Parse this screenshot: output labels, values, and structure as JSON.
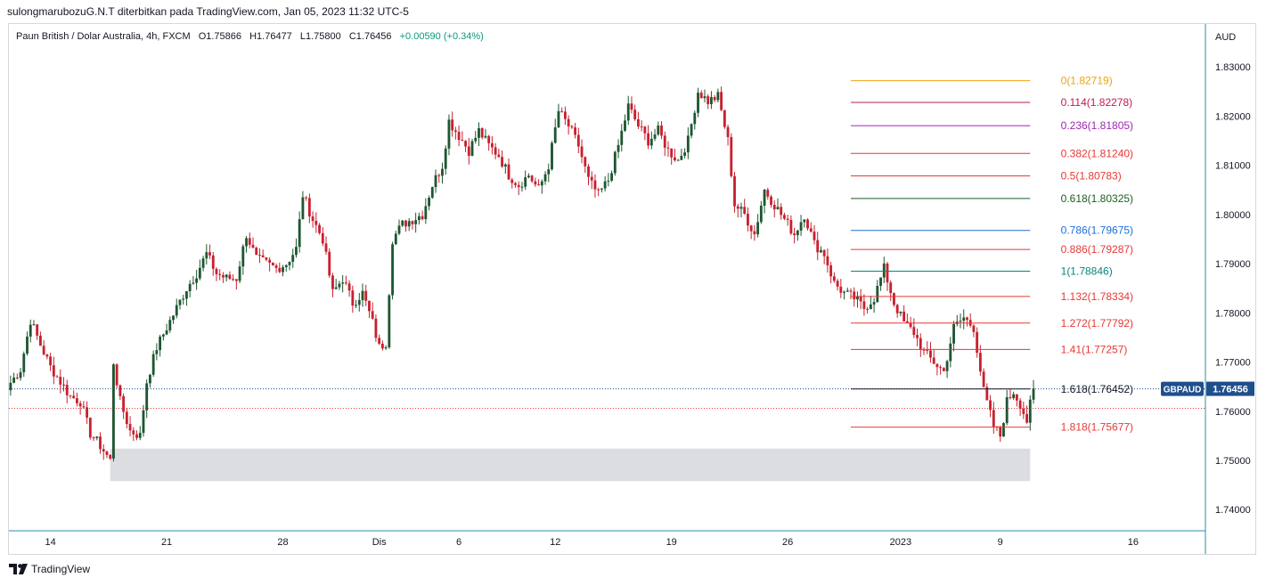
{
  "caption": "sulongmarubozuG.N.T diterbitkan pada TradingView.com, Jan 05, 2023 11:32 UTC-5",
  "symbol": {
    "name": "Paun British / Dolar Australia, 4h, FXCM",
    "open": "O1.75866",
    "high": "H1.76477",
    "low": "L1.75800",
    "close": "C1.76456",
    "change": "+0.00590 (+0.34%)"
  },
  "footer": {
    "brand": "TradingView"
  },
  "chart_data": {
    "type": "candlestick",
    "currency": "AUD",
    "ticker": "GBPAUD",
    "last_price": "1.76456",
    "ylim": [
      1.7357,
      1.8387
    ],
    "y_ticks": [
      "1.83000",
      "1.82000",
      "1.81000",
      "1.80000",
      "1.79000",
      "1.78000",
      "1.77000",
      "1.76000",
      "1.75000",
      "1.74000"
    ],
    "x_ticks": [
      {
        "label": "14",
        "bar": 12
      },
      {
        "label": "21",
        "bar": 47
      },
      {
        "label": "28",
        "bar": 82
      },
      {
        "label": "Dis",
        "bar": 111
      },
      {
        "label": "6",
        "bar": 135
      },
      {
        "label": "12",
        "bar": 164
      },
      {
        "label": "19",
        "bar": 199
      },
      {
        "label": "26",
        "bar": 234
      },
      {
        "label": "2023",
        "bar": 268
      },
      {
        "label": "9",
        "bar": 298
      },
      {
        "label": "16",
        "bar": 338
      }
    ],
    "bars_total": 360,
    "colors": {
      "up": "#1e5631",
      "down": "#c8202f",
      "zone": "#d6d7dc",
      "badge": "#1f4e8c",
      "last": "#131722"
    },
    "fibonacci": [
      {
        "ratio": "0",
        "price": 1.82719,
        "label": "0(1.82719)",
        "color": "#f0a30a"
      },
      {
        "ratio": "0.114",
        "price": 1.82278,
        "label": "0.114(1.82278)",
        "color": "#c2185b"
      },
      {
        "ratio": "0.236",
        "price": 1.81805,
        "label": "0.236(1.81805)",
        "color": "#9c27b0"
      },
      {
        "ratio": "0.382",
        "price": 1.8124,
        "label": "0.382(1.81240)",
        "color": "#e53935"
      },
      {
        "ratio": "0.5",
        "price": 1.80783,
        "label": "0.5(1.80783)",
        "color": "#e53935"
      },
      {
        "ratio": "0.618",
        "price": 1.80325,
        "label": "0.618(1.80325)",
        "color": "#1b5e20"
      },
      {
        "ratio": "0.786",
        "price": 1.79675,
        "label": "0.786(1.79675)",
        "color": "#1e6fd9"
      },
      {
        "ratio": "0.886",
        "price": 1.79287,
        "label": "0.886(1.79287)",
        "color": "#e53935"
      },
      {
        "ratio": "1",
        "price": 1.78846,
        "label": "1(1.78846)",
        "color": "#00897b"
      },
      {
        "ratio": "1.132",
        "price": 1.78334,
        "label": "1.132(1.78334)",
        "color": "#e53935"
      },
      {
        "ratio": "1.272",
        "price": 1.77792,
        "label": "1.272(1.77792)",
        "color": "#e53935"
      },
      {
        "ratio": "1.41",
        "price": 1.77257,
        "label": "1.41(1.77257)",
        "color": "#e53935"
      },
      {
        "ratio": "1.618",
        "price": 1.76452,
        "label": "1.618(1.76452)",
        "color": "#131722"
      },
      {
        "ratio": "1.818",
        "price": 1.75677,
        "label": "1.818(1.75677)",
        "color": "#e53935"
      }
    ],
    "fib_bar_range": [
      253,
      307
    ],
    "zone": {
      "bar_start": 30,
      "bar_end": 307,
      "top": 1.7524,
      "bottom": 1.7458
    },
    "last_line_price": 1.76456,
    "ref_line_price": 1.7606,
    "path": [
      [
        0,
        1.7658
      ],
      [
        3,
        1.7685
      ],
      [
        6,
        1.7785
      ],
      [
        9,
        1.7735
      ],
      [
        12,
        1.769
      ],
      [
        15,
        1.766
      ],
      [
        18,
        1.763
      ],
      [
        21,
        1.762
      ],
      [
        24,
        1.7555
      ],
      [
        27,
        1.753
      ],
      [
        30,
        1.75
      ],
      [
        31,
        1.77
      ],
      [
        33,
        1.762
      ],
      [
        36,
        1.756
      ],
      [
        39,
        1.755
      ],
      [
        41,
        1.766
      ],
      [
        44,
        1.773
      ],
      [
        47,
        1.777
      ],
      [
        50,
        1.781
      ],
      [
        53,
        1.785
      ],
      [
        56,
        1.788
      ],
      [
        59,
        1.792
      ],
      [
        62,
        1.788
      ],
      [
        65,
        1.787
      ],
      [
        68,
        1.787
      ],
      [
        71,
        1.796
      ],
      [
        74,
        1.791
      ],
      [
        77,
        1.79
      ],
      [
        80,
        1.789
      ],
      [
        83,
        1.79
      ],
      [
        86,
        1.793
      ],
      [
        88,
        1.804
      ],
      [
        91,
        1.799
      ],
      [
        94,
        1.795
      ],
      [
        97,
        1.784
      ],
      [
        100,
        1.787
      ],
      [
        103,
        1.782
      ],
      [
        106,
        1.784
      ],
      [
        109,
        1.778
      ],
      [
        111,
        1.773
      ],
      [
        113,
        1.774
      ],
      [
        115,
        1.795
      ],
      [
        118,
        1.798
      ],
      [
        121,
        1.799
      ],
      [
        124,
        1.8
      ],
      [
        127,
        1.806
      ],
      [
        130,
        1.81
      ],
      [
        132,
        1.819
      ],
      [
        135,
        1.816
      ],
      [
        138,
        1.813
      ],
      [
        141,
        1.817
      ],
      [
        144,
        1.814
      ],
      [
        147,
        1.812
      ],
      [
        150,
        1.808
      ],
      [
        153,
        1.806
      ],
      [
        156,
        1.808
      ],
      [
        159,
        1.805
      ],
      [
        162,
        1.81
      ],
      [
        165,
        1.821
      ],
      [
        168,
        1.818
      ],
      [
        171,
        1.814
      ],
      [
        174,
        1.807
      ],
      [
        177,
        1.804
      ],
      [
        180,
        1.807
      ],
      [
        183,
        1.814
      ],
      [
        186,
        1.822
      ],
      [
        189,
        1.818
      ],
      [
        192,
        1.815
      ],
      [
        195,
        1.817
      ],
      [
        198,
        1.813
      ],
      [
        201,
        1.811
      ],
      [
        204,
        1.815
      ],
      [
        207,
        1.825
      ],
      [
        210,
        1.823
      ],
      [
        213,
        1.824
      ],
      [
        216,
        1.815
      ],
      [
        218,
        1.802
      ],
      [
        221,
        1.8
      ],
      [
        224,
        1.796
      ],
      [
        227,
        1.805
      ],
      [
        230,
        1.802
      ],
      [
        233,
        1.799
      ],
      [
        236,
        1.796
      ],
      [
        239,
        1.8
      ],
      [
        242,
        1.794
      ],
      [
        245,
        1.792
      ],
      [
        248,
        1.786
      ],
      [
        251,
        1.784
      ],
      [
        254,
        1.783
      ],
      [
        257,
        1.781
      ],
      [
        260,
        1.783
      ],
      [
        263,
        1.789
      ],
      [
        266,
        1.782
      ],
      [
        269,
        1.778
      ],
      [
        272,
        1.776
      ],
      [
        275,
        1.772
      ],
      [
        278,
        1.77
      ],
      [
        281,
        1.768
      ],
      [
        284,
        1.777
      ],
      [
        287,
        1.779
      ],
      [
        290,
        1.777
      ],
      [
        293,
        1.764
      ],
      [
        296,
        1.757
      ],
      [
        298,
        1.755
      ],
      [
        300,
        1.762
      ],
      [
        302,
        1.764
      ],
      [
        304,
        1.7615
      ],
      [
        306,
        1.758
      ],
      [
        308,
        1.7646
      ]
    ]
  }
}
